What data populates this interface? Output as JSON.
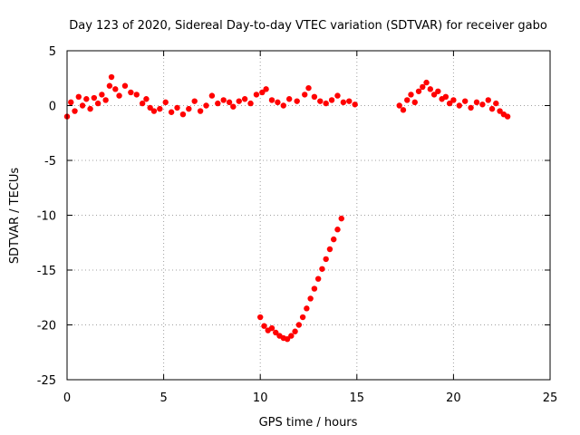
{
  "chart_data": {
    "type": "scatter",
    "title": "Day 123 of 2020, Sidereal Day-to-day VTEC variation (SDTVAR) for receiver gabo",
    "xlabel": "GPS time / hours",
    "ylabel": "SDTVAR / TECUs",
    "xlim": [
      0,
      25
    ],
    "ylim": [
      -25,
      5
    ],
    "xticks": [
      0,
      5,
      10,
      15,
      20,
      25
    ],
    "yticks": [
      5,
      0,
      -5,
      -10,
      -15,
      -20,
      -25
    ],
    "grid": true,
    "series": [
      {
        "name": "SDTVAR",
        "color": "#ff0000",
        "points": [
          [
            0.0,
            -1.0
          ],
          [
            0.2,
            0.3
          ],
          [
            0.4,
            -0.5
          ],
          [
            0.6,
            0.8
          ],
          [
            0.8,
            0.0
          ],
          [
            1.0,
            0.6
          ],
          [
            1.2,
            -0.3
          ],
          [
            1.4,
            0.7
          ],
          [
            1.6,
            0.2
          ],
          [
            1.8,
            1.0
          ],
          [
            2.0,
            0.5
          ],
          [
            2.2,
            1.8
          ],
          [
            2.3,
            2.6
          ],
          [
            2.5,
            1.5
          ],
          [
            2.7,
            0.9
          ],
          [
            3.0,
            1.8
          ],
          [
            3.3,
            1.2
          ],
          [
            3.6,
            1.0
          ],
          [
            3.9,
            0.2
          ],
          [
            4.1,
            0.6
          ],
          [
            4.3,
            -0.2
          ],
          [
            4.5,
            -0.5
          ],
          [
            4.8,
            -0.3
          ],
          [
            5.1,
            0.3
          ],
          [
            5.4,
            -0.6
          ],
          [
            5.7,
            -0.2
          ],
          [
            6.0,
            -0.8
          ],
          [
            6.3,
            -0.3
          ],
          [
            6.6,
            0.4
          ],
          [
            6.9,
            -0.5
          ],
          [
            7.2,
            0.0
          ],
          [
            7.5,
            0.9
          ],
          [
            7.8,
            0.2
          ],
          [
            8.1,
            0.5
          ],
          [
            8.4,
            0.3
          ],
          [
            8.6,
            -0.1
          ],
          [
            8.9,
            0.4
          ],
          [
            9.2,
            0.6
          ],
          [
            9.5,
            0.2
          ],
          [
            9.8,
            1.0
          ],
          [
            10.1,
            1.2
          ],
          [
            10.3,
            1.5
          ],
          [
            10.6,
            0.5
          ],
          [
            10.9,
            0.3
          ],
          [
            11.2,
            0.0
          ],
          [
            11.5,
            0.6
          ],
          [
            11.9,
            0.4
          ],
          [
            12.3,
            1.0
          ],
          [
            12.5,
            1.6
          ],
          [
            12.8,
            0.8
          ],
          [
            13.1,
            0.4
          ],
          [
            13.4,
            0.2
          ],
          [
            13.7,
            0.5
          ],
          [
            14.0,
            0.9
          ],
          [
            14.3,
            0.3
          ],
          [
            14.6,
            0.4
          ],
          [
            14.9,
            0.1
          ],
          [
            10.0,
            -19.3
          ],
          [
            10.2,
            -20.1
          ],
          [
            10.4,
            -20.5
          ],
          [
            10.6,
            -20.3
          ],
          [
            10.8,
            -20.7
          ],
          [
            11.0,
            -21.0
          ],
          [
            11.2,
            -21.2
          ],
          [
            11.4,
            -21.3
          ],
          [
            11.6,
            -21.0
          ],
          [
            11.8,
            -20.6
          ],
          [
            12.0,
            -20.0
          ],
          [
            12.2,
            -19.3
          ],
          [
            12.4,
            -18.5
          ],
          [
            12.6,
            -17.6
          ],
          [
            12.8,
            -16.7
          ],
          [
            13.0,
            -15.8
          ],
          [
            13.2,
            -14.9
          ],
          [
            13.4,
            -14.0
          ],
          [
            13.6,
            -13.1
          ],
          [
            13.8,
            -12.2
          ],
          [
            14.0,
            -11.3
          ],
          [
            14.2,
            -10.3
          ],
          [
            17.2,
            0.0
          ],
          [
            17.4,
            -0.4
          ],
          [
            17.6,
            0.5
          ],
          [
            17.8,
            1.0
          ],
          [
            18.0,
            0.3
          ],
          [
            18.2,
            1.3
          ],
          [
            18.4,
            1.7
          ],
          [
            18.6,
            2.1
          ],
          [
            18.8,
            1.5
          ],
          [
            19.0,
            1.0
          ],
          [
            19.2,
            1.3
          ],
          [
            19.4,
            0.6
          ],
          [
            19.6,
            0.8
          ],
          [
            19.8,
            0.2
          ],
          [
            20.0,
            0.5
          ],
          [
            20.3,
            0.0
          ],
          [
            20.6,
            0.4
          ],
          [
            20.9,
            -0.2
          ],
          [
            21.2,
            0.3
          ],
          [
            21.5,
            0.1
          ],
          [
            21.8,
            0.5
          ],
          [
            22.0,
            -0.3
          ],
          [
            22.2,
            0.2
          ],
          [
            22.4,
            -0.5
          ],
          [
            22.6,
            -0.8
          ],
          [
            22.8,
            -1.0
          ]
        ]
      }
    ]
  }
}
